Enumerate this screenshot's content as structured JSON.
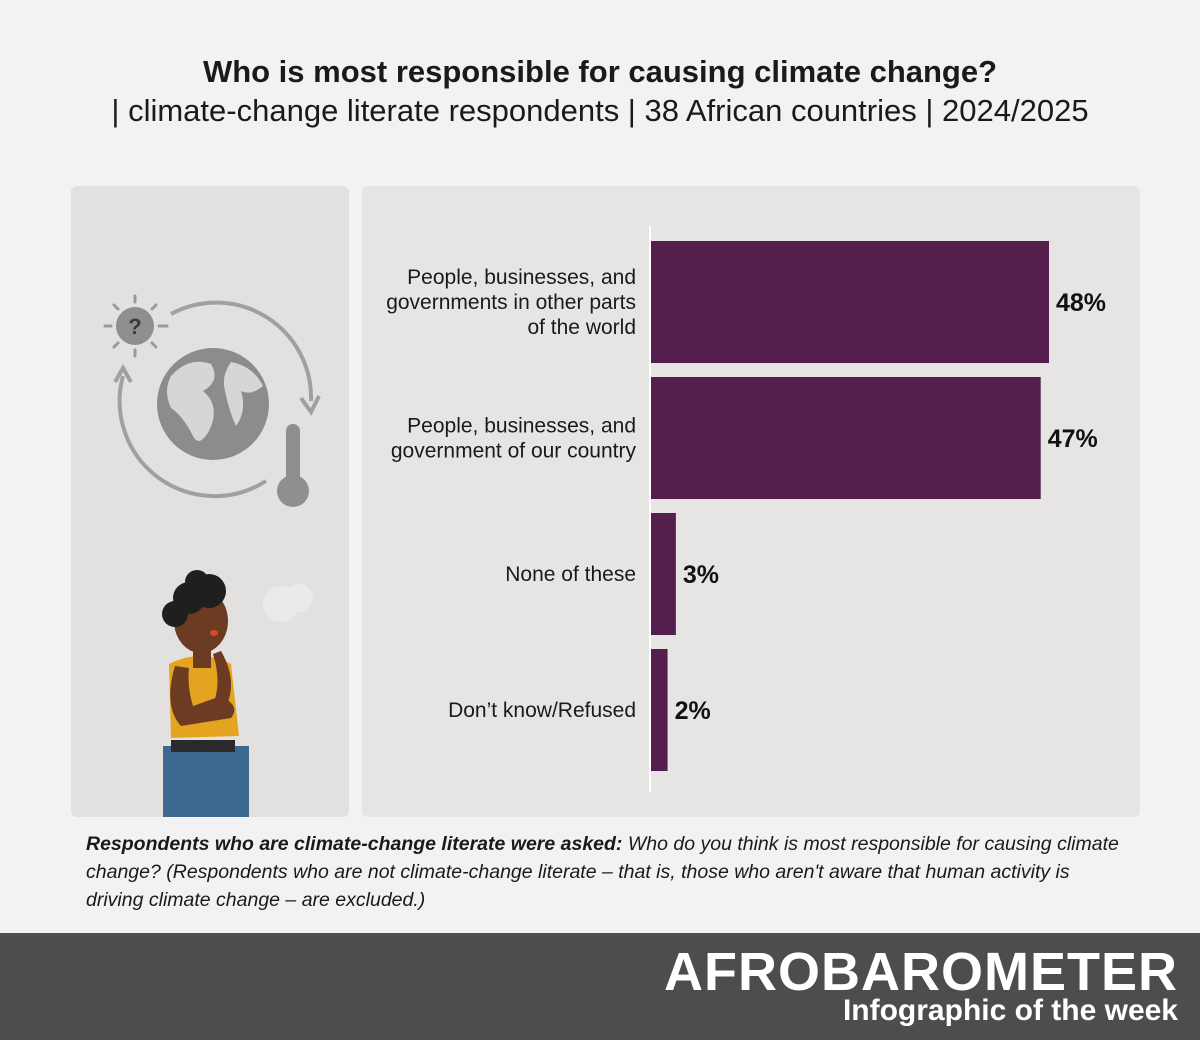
{
  "header": {
    "title": "Who is most responsible for causing climate change?",
    "subtitle": "| climate-change literate respondents | 38 African countries | 2024/2025"
  },
  "chart_data": {
    "type": "bar",
    "orientation": "horizontal",
    "categories": [
      "People, businesses, and governments in other parts of the world",
      "People, businesses, and government of our country",
      "None of these",
      "Don’t know/Refused"
    ],
    "values": [
      48,
      47,
      3,
      2
    ],
    "value_labels": [
      "48%",
      "47%",
      "3%",
      "2%"
    ],
    "unit": "%",
    "xlim": [
      0,
      50
    ],
    "bar_color": "#541e4d",
    "grid": false,
    "legend": "none"
  },
  "note": {
    "lead": "Respondents who are climate-change literate were asked:",
    "text": "Who do you think is most responsible for causing climate change? (Respondents who are not climate-change literate – that is, those who aren't aware that human activity is driving climate change – are excluded.)"
  },
  "footer": {
    "brand": "AFROBAROMETER",
    "tagline": "Infographic of the week",
    "background": "#4d4d4d"
  },
  "illustration": {
    "icons": [
      "sun-question-icon",
      "globe-icon",
      "thermometer-icon",
      "cycle-arrows-icon",
      "thinking-woman-illustration"
    ]
  }
}
